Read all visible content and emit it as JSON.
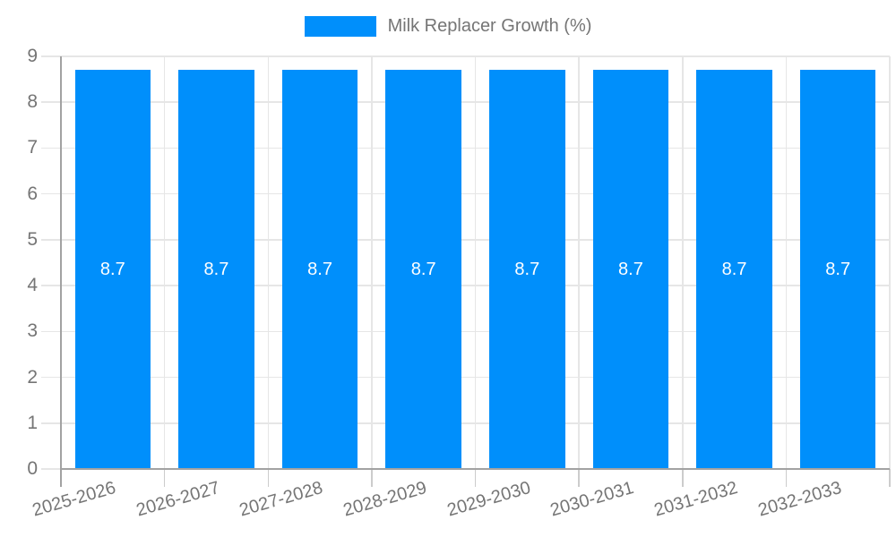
{
  "chart_data": {
    "type": "bar",
    "title": "Milk Replacer Growth (%)",
    "categories": [
      "2025-2026",
      "2026-2027",
      "2027-2028",
      "2028-2029",
      "2029-2030",
      "2030-2031",
      "2031-2032",
      "2032-2033"
    ],
    "series": [
      {
        "name": "Milk Replacer Growth (%)",
        "values": [
          8.7,
          8.7,
          8.7,
          8.7,
          8.7,
          8.7,
          8.7,
          8.7
        ]
      }
    ],
    "value_labels": [
      "8.7",
      "8.7",
      "8.7",
      "8.7",
      "8.7",
      "8.7",
      "8.7",
      "8.7"
    ],
    "xlabel": "",
    "ylabel": "",
    "ylim": [
      0,
      9
    ],
    "yticks": [
      0,
      1,
      2,
      3,
      4,
      5,
      6,
      7,
      8,
      9
    ],
    "grid": true,
    "legend_position": "top-center",
    "colors": {
      "bar": "#008FFB",
      "gridline": "#e6e6e6",
      "tick": "#cccccc",
      "axis": "#a2a2a2",
      "axis_label": "#757575",
      "value_label": "#ffffff"
    }
  }
}
